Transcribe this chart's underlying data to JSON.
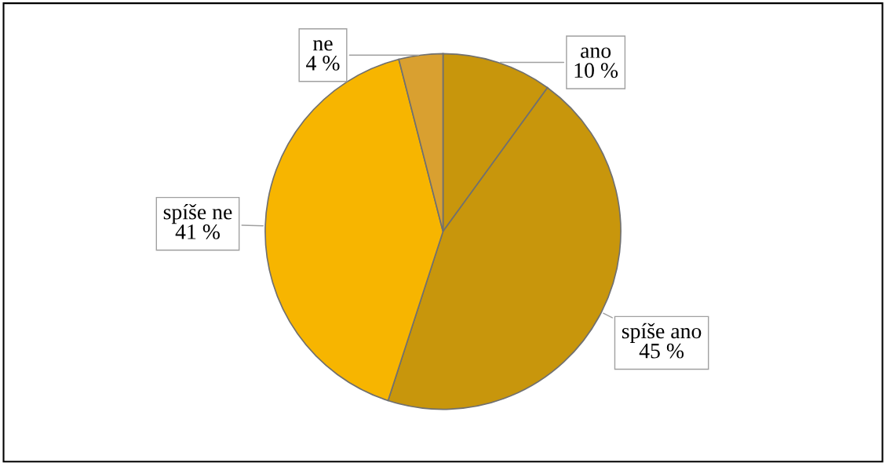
{
  "chart_data": {
    "type": "pie",
    "categories": [
      "ano",
      "spíše ano",
      "spíše ne",
      "ne"
    ],
    "values": [
      10,
      45,
      41,
      4
    ],
    "value_labels": [
      "10 %",
      "45 %",
      "41 %",
      "4 %"
    ],
    "colors": [
      "#c8960c",
      "#c8960c",
      "#f7b500",
      "#d9a030"
    ],
    "legend": false
  }
}
